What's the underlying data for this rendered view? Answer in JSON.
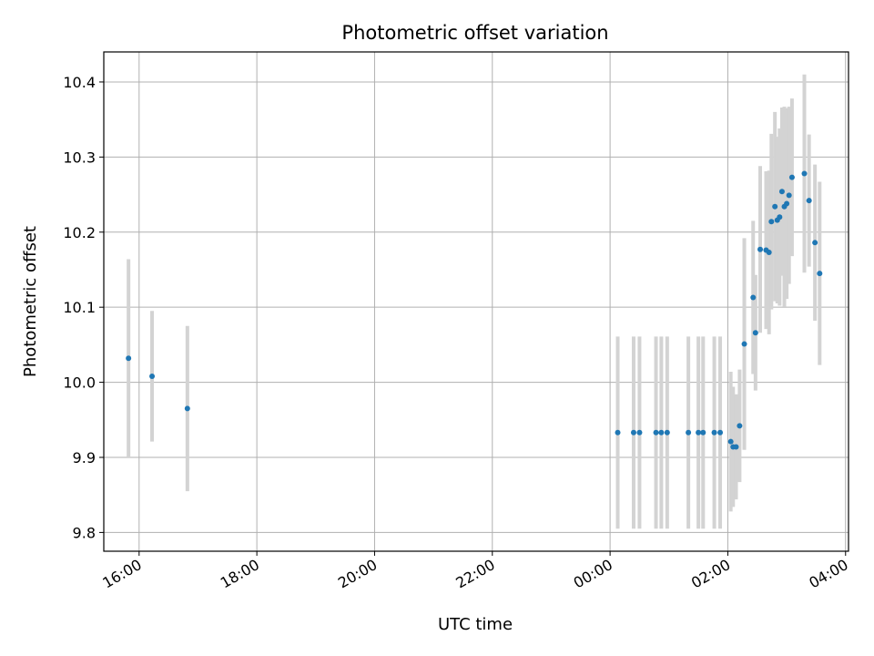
{
  "chart_data": {
    "type": "scatter",
    "title": "Photometric offset variation",
    "xlabel": "UTC time",
    "ylabel": "Photometric offset",
    "x_unit": "UTC hour (hours past 00:00 of first day; values above 24 are on the following day)",
    "xlim": [
      15.4,
      28.05
    ],
    "ylim": [
      9.775,
      10.44
    ],
    "grid": true,
    "colors": {
      "point": "#1f77b4",
      "errorbar": "#d3d3d3",
      "grid": "#b0b0b0"
    },
    "x_ticks": [
      {
        "value": 16,
        "label": "16:00"
      },
      {
        "value": 18,
        "label": "18:00"
      },
      {
        "value": 20,
        "label": "20:00"
      },
      {
        "value": 22,
        "label": "22:00"
      },
      {
        "value": 24,
        "label": "00:00"
      },
      {
        "value": 26,
        "label": "02:00"
      },
      {
        "value": 28,
        "label": "04:00"
      }
    ],
    "y_ticks": [
      {
        "value": 9.8,
        "label": "9.8"
      },
      {
        "value": 9.9,
        "label": "9.9"
      },
      {
        "value": 10.0,
        "label": "10.0"
      },
      {
        "value": 10.1,
        "label": "10.1"
      },
      {
        "value": 10.2,
        "label": "10.2"
      },
      {
        "value": 10.3,
        "label": "10.3"
      },
      {
        "value": 10.4,
        "label": "10.4"
      }
    ],
    "points": [
      {
        "x": 15.82,
        "y": 10.032,
        "err": 0.132
      },
      {
        "x": 16.22,
        "y": 10.008,
        "err": 0.087
      },
      {
        "x": 16.82,
        "y": 9.965,
        "err": 0.11
      },
      {
        "x": 24.13,
        "y": 9.933,
        "err": 0.128
      },
      {
        "x": 24.4,
        "y": 9.933,
        "err": 0.128
      },
      {
        "x": 24.5,
        "y": 9.933,
        "err": 0.128
      },
      {
        "x": 24.78,
        "y": 9.933,
        "err": 0.128
      },
      {
        "x": 24.87,
        "y": 9.933,
        "err": 0.128
      },
      {
        "x": 24.97,
        "y": 9.933,
        "err": 0.128
      },
      {
        "x": 25.33,
        "y": 9.933,
        "err": 0.128
      },
      {
        "x": 25.5,
        "y": 9.933,
        "err": 0.128
      },
      {
        "x": 25.58,
        "y": 9.933,
        "err": 0.128
      },
      {
        "x": 25.77,
        "y": 9.933,
        "err": 0.128
      },
      {
        "x": 25.87,
        "y": 9.933,
        "err": 0.128
      },
      {
        "x": 26.05,
        "y": 9.921,
        "err": 0.093
      },
      {
        "x": 26.09,
        "y": 9.914,
        "err": 0.08
      },
      {
        "x": 26.14,
        "y": 9.914,
        "err": 0.07
      },
      {
        "x": 26.2,
        "y": 9.942,
        "err": 0.075
      },
      {
        "x": 26.28,
        "y": 10.051,
        "err": 0.141
      },
      {
        "x": 26.43,
        "y": 10.113,
        "err": 0.102
      },
      {
        "x": 26.47,
        "y": 10.066,
        "err": 0.077
      },
      {
        "x": 26.55,
        "y": 10.177,
        "err": 0.111
      },
      {
        "x": 26.65,
        "y": 10.176,
        "err": 0.105
      },
      {
        "x": 26.7,
        "y": 10.173,
        "err": 0.109
      },
      {
        "x": 26.74,
        "y": 10.214,
        "err": 0.117
      },
      {
        "x": 26.8,
        "y": 10.234,
        "err": 0.126
      },
      {
        "x": 26.84,
        "y": 10.216,
        "err": 0.111
      },
      {
        "x": 26.88,
        "y": 10.22,
        "err": 0.118
      },
      {
        "x": 26.92,
        "y": 10.254,
        "err": 0.112
      },
      {
        "x": 26.96,
        "y": 10.234,
        "err": 0.133
      },
      {
        "x": 27.0,
        "y": 10.238,
        "err": 0.127
      },
      {
        "x": 27.04,
        "y": 10.249,
        "err": 0.118
      },
      {
        "x": 27.09,
        "y": 10.273,
        "err": 0.105
      },
      {
        "x": 27.3,
        "y": 10.278,
        "err": 0.132
      },
      {
        "x": 27.38,
        "y": 10.242,
        "err": 0.088
      },
      {
        "x": 27.48,
        "y": 10.186,
        "err": 0.104
      },
      {
        "x": 27.56,
        "y": 10.145,
        "err": 0.122
      }
    ]
  }
}
